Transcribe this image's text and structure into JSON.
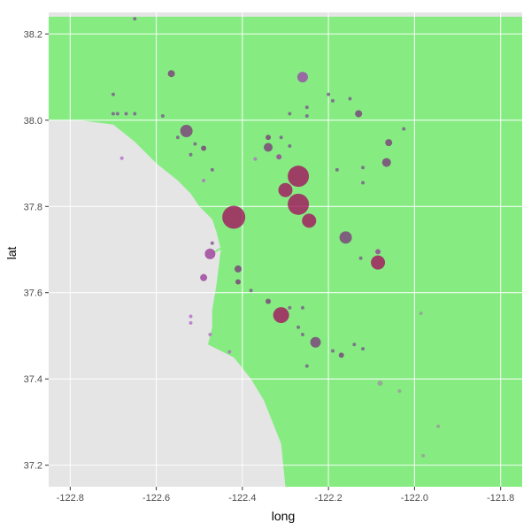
{
  "chart_data": {
    "type": "scatter",
    "title": "",
    "xlabel": "long",
    "ylabel": "lat",
    "xlim": [
      -122.85,
      -121.75
    ],
    "ylim": [
      37.15,
      38.25
    ],
    "x_ticks": [
      -122.8,
      -122.6,
      -122.4,
      -122.2,
      -122.0,
      -121.8
    ],
    "x_tick_labels": [
      "-122.8",
      "-122.6",
      "-122.4",
      "-122.2",
      "-122.0",
      "-121.8"
    ],
    "y_ticks": [
      37.2,
      37.4,
      37.6,
      37.8,
      38.0,
      38.2
    ],
    "y_tick_labels": [
      "37.2",
      "37.4",
      "37.6",
      "37.8",
      "38.0",
      "38.2"
    ],
    "grid": true,
    "legend": "none",
    "background": {
      "panel": "#e5e5e5",
      "grid": "#ffffff",
      "land": "#86ec82"
    },
    "land_polygons": [
      [
        [
          -122.85,
          38.24
        ],
        [
          -121.75,
          38.24
        ],
        [
          -121.75,
          37.15
        ],
        [
          -122.3,
          37.15
        ],
        [
          -122.31,
          37.25
        ],
        [
          -122.33,
          37.3
        ],
        [
          -122.35,
          37.35
        ],
        [
          -122.38,
          37.4
        ],
        [
          -122.42,
          37.45
        ],
        [
          -122.48,
          37.48
        ],
        [
          -122.47,
          37.52
        ],
        [
          -122.47,
          37.56
        ],
        [
          -122.46,
          37.62
        ],
        [
          -122.45,
          37.7
        ],
        [
          -122.46,
          37.74
        ],
        [
          -122.47,
          37.77
        ],
        [
          -122.48,
          37.78
        ],
        [
          -122.5,
          37.8
        ],
        [
          -122.52,
          37.83
        ],
        [
          -122.55,
          37.86
        ],
        [
          -122.6,
          37.9
        ],
        [
          -122.65,
          37.95
        ],
        [
          -122.7,
          37.99
        ],
        [
          -122.78,
          38.0
        ],
        [
          -122.85,
          38.0
        ]
      ],
      [
        [
          -122.55,
          38.15
        ],
        [
          -122.53,
          38.02
        ],
        [
          -122.46,
          37.98
        ],
        [
          -122.42,
          37.97
        ],
        [
          -122.38,
          37.95
        ],
        [
          -122.36,
          37.92
        ],
        [
          -122.34,
          37.9
        ],
        [
          -122.31,
          37.92
        ],
        [
          -122.3,
          37.95
        ],
        [
          -122.28,
          37.98
        ],
        [
          -122.25,
          38.0
        ],
        [
          -122.2,
          38.01
        ],
        [
          -122.14,
          38.01
        ],
        [
          -122.11,
          38.03
        ],
        [
          -122.09,
          38.05
        ],
        [
          -122.1,
          38.08
        ],
        [
          -122.15,
          38.09
        ],
        [
          -122.2,
          38.09
        ],
        [
          -122.25,
          38.1
        ],
        [
          -122.3,
          38.14
        ],
        [
          -122.34,
          38.2
        ],
        [
          -122.42,
          38.2
        ],
        [
          -122.5,
          38.17
        ]
      ],
      [
        [
          -122.47,
          37.69
        ],
        [
          -122.43,
          37.71
        ],
        [
          -122.4,
          37.73
        ],
        [
          -122.37,
          37.74
        ],
        [
          -122.37,
          37.7
        ],
        [
          -122.38,
          37.66
        ],
        [
          -122.37,
          37.62
        ],
        [
          -122.33,
          37.58
        ],
        [
          -122.28,
          37.55
        ],
        [
          -122.23,
          37.5
        ],
        [
          -122.17,
          37.44
        ],
        [
          -122.13,
          37.43
        ],
        [
          -122.1,
          37.43
        ],
        [
          -122.06,
          37.44
        ],
        [
          -122.02,
          37.47
        ],
        [
          -122.03,
          37.51
        ],
        [
          -122.05,
          37.55
        ],
        [
          -122.07,
          37.58
        ],
        [
          -122.1,
          37.62
        ],
        [
          -122.12,
          37.65
        ],
        [
          -122.16,
          37.7
        ],
        [
          -122.19,
          37.74
        ],
        [
          -122.22,
          37.78
        ],
        [
          -122.25,
          37.82
        ],
        [
          -122.27,
          37.86
        ],
        [
          -122.3,
          37.89
        ],
        [
          -122.32,
          37.88
        ],
        [
          -122.33,
          37.85
        ],
        [
          -122.34,
          37.8
        ],
        [
          -122.36,
          37.76
        ],
        [
          -122.42,
          37.72
        ],
        [
          -122.46,
          37.7
        ]
      ]
    ],
    "points": [
      {
        "x": -122.65,
        "y": 38.235,
        "size": 2,
        "color": "#7a5a8c"
      },
      {
        "x": -122.565,
        "y": 38.108,
        "size": 4,
        "color": "#7a3d7a"
      },
      {
        "x": -122.26,
        "y": 38.1,
        "size": 6,
        "color": "#9b4aad"
      },
      {
        "x": -122.7,
        "y": 38.06,
        "size": 2,
        "color": "#7a5a8c"
      },
      {
        "x": -122.69,
        "y": 38.015,
        "size": 2,
        "color": "#7a5a8c"
      },
      {
        "x": -122.7,
        "y": 38.015,
        "size": 2,
        "color": "#7a5a8c"
      },
      {
        "x": -122.67,
        "y": 38.015,
        "size": 2,
        "color": "#7a5a8c"
      },
      {
        "x": -122.65,
        "y": 38.015,
        "size": 2,
        "color": "#7a5a8c"
      },
      {
        "x": -122.585,
        "y": 38.01,
        "size": 2,
        "color": "#7a5a8c"
      },
      {
        "x": -122.53,
        "y": 37.975,
        "size": 7,
        "color": "#7a3d7a"
      },
      {
        "x": -122.55,
        "y": 37.96,
        "size": 2,
        "color": "#7a5a8c"
      },
      {
        "x": -122.51,
        "y": 37.945,
        "size": 2,
        "color": "#7a5a8c"
      },
      {
        "x": -122.52,
        "y": 37.92,
        "size": 2,
        "color": "#7a5a8c"
      },
      {
        "x": -122.49,
        "y": 37.935,
        "size": 3,
        "color": "#7a3d7a"
      },
      {
        "x": -122.68,
        "y": 37.912,
        "size": 2,
        "color": "#b46ec8"
      },
      {
        "x": -122.34,
        "y": 37.96,
        "size": 3,
        "color": "#7a3d7a"
      },
      {
        "x": -122.34,
        "y": 37.937,
        "size": 5,
        "color": "#7a3d7a"
      },
      {
        "x": -122.31,
        "y": 37.96,
        "size": 2,
        "color": "#7a5a8c"
      },
      {
        "x": -122.315,
        "y": 37.915,
        "size": 3,
        "color": "#9b3d9b"
      },
      {
        "x": -122.37,
        "y": 37.91,
        "size": 2,
        "color": "#b46ec8"
      },
      {
        "x": -122.29,
        "y": 37.94,
        "size": 2,
        "color": "#7a5a8c"
      },
      {
        "x": -122.2,
        "y": 38.06,
        "size": 2,
        "color": "#7a5a8c"
      },
      {
        "x": -122.19,
        "y": 38.045,
        "size": 2,
        "color": "#7a5a8c"
      },
      {
        "x": -122.25,
        "y": 38.03,
        "size": 2,
        "color": "#7a5a8c"
      },
      {
        "x": -122.29,
        "y": 38.015,
        "size": 2,
        "color": "#7a5a8c"
      },
      {
        "x": -122.25,
        "y": 38.01,
        "size": 2,
        "color": "#7a5a8c"
      },
      {
        "x": -122.15,
        "y": 38.05,
        "size": 2,
        "color": "#7a5a8c"
      },
      {
        "x": -122.13,
        "y": 38.015,
        "size": 4,
        "color": "#7a3d7a"
      },
      {
        "x": -122.06,
        "y": 37.948,
        "size": 4,
        "color": "#7a3d7a"
      },
      {
        "x": -122.025,
        "y": 37.98,
        "size": 2,
        "color": "#7a5a8c"
      },
      {
        "x": -122.065,
        "y": 37.902,
        "size": 5,
        "color": "#7a3d7a"
      },
      {
        "x": -122.12,
        "y": 37.89,
        "size": 2,
        "color": "#7a5a8c"
      },
      {
        "x": -122.12,
        "y": 37.855,
        "size": 2,
        "color": "#7a5a8c"
      },
      {
        "x": -122.18,
        "y": 37.885,
        "size": 2,
        "color": "#7a5a8c"
      },
      {
        "x": -122.47,
        "y": 37.885,
        "size": 2,
        "color": "#7a5a8c"
      },
      {
        "x": -122.49,
        "y": 37.86,
        "size": 2,
        "color": "#b46ec8"
      },
      {
        "x": -122.27,
        "y": 37.87,
        "size": 12,
        "color": "#a3145e"
      },
      {
        "x": -122.3,
        "y": 37.838,
        "size": 8,
        "color": "#a3145e"
      },
      {
        "x": -122.27,
        "y": 37.805,
        "size": 12,
        "color": "#a3145e"
      },
      {
        "x": -122.245,
        "y": 37.767,
        "size": 8,
        "color": "#a3145e"
      },
      {
        "x": -122.42,
        "y": 37.775,
        "size": 13,
        "color": "#a3145e"
      },
      {
        "x": -122.16,
        "y": 37.728,
        "size": 7,
        "color": "#7a3d7a"
      },
      {
        "x": -122.085,
        "y": 37.695,
        "size": 3,
        "color": "#9b3d9b"
      },
      {
        "x": -122.085,
        "y": 37.67,
        "size": 8,
        "color": "#a3145e"
      },
      {
        "x": -122.125,
        "y": 37.68,
        "size": 2,
        "color": "#7a5a8c"
      },
      {
        "x": -122.47,
        "y": 37.715,
        "size": 2,
        "color": "#7a5a8c"
      },
      {
        "x": -122.475,
        "y": 37.69,
        "size": 6,
        "color": "#9b3d9b"
      },
      {
        "x": -122.41,
        "y": 37.655,
        "size": 4,
        "color": "#7a3d7a"
      },
      {
        "x": -122.41,
        "y": 37.625,
        "size": 3,
        "color": "#7a3d7a"
      },
      {
        "x": -122.49,
        "y": 37.635,
        "size": 4,
        "color": "#9b3d9b"
      },
      {
        "x": -122.38,
        "y": 37.605,
        "size": 2,
        "color": "#7a5a8c"
      },
      {
        "x": -122.34,
        "y": 37.58,
        "size": 3,
        "color": "#7a3d7a"
      },
      {
        "x": -122.31,
        "y": 37.548,
        "size": 9,
        "color": "#a3145e"
      },
      {
        "x": -122.29,
        "y": 37.565,
        "size": 2,
        "color": "#7a5a8c"
      },
      {
        "x": -122.26,
        "y": 37.565,
        "size": 2,
        "color": "#7a5a8c"
      },
      {
        "x": -122.27,
        "y": 37.52,
        "size": 2,
        "color": "#7a5a8c"
      },
      {
        "x": -122.26,
        "y": 37.503,
        "size": 2,
        "color": "#7a5a8c"
      },
      {
        "x": -122.23,
        "y": 37.485,
        "size": 6,
        "color": "#7a3d7a"
      },
      {
        "x": -122.19,
        "y": 37.465,
        "size": 2,
        "color": "#7a5a8c"
      },
      {
        "x": -122.17,
        "y": 37.455,
        "size": 3,
        "color": "#7a3d7a"
      },
      {
        "x": -122.14,
        "y": 37.48,
        "size": 2,
        "color": "#7a5a8c"
      },
      {
        "x": -122.12,
        "y": 37.47,
        "size": 2,
        "color": "#7a5a8c"
      },
      {
        "x": -122.25,
        "y": 37.43,
        "size": 2,
        "color": "#7a5a8c"
      },
      {
        "x": -122.52,
        "y": 37.545,
        "size": 2,
        "color": "#b46ec8"
      },
      {
        "x": -122.52,
        "y": 37.53,
        "size": 2,
        "color": "#b46ec8"
      },
      {
        "x": -122.475,
        "y": 37.503,
        "size": 2,
        "color": "#b46ec8"
      },
      {
        "x": -122.43,
        "y": 37.463,
        "size": 2,
        "color": "#b46ec8"
      },
      {
        "x": -122.08,
        "y": 37.39,
        "size": 3,
        "color": "#9a9a9a"
      },
      {
        "x": -122.035,
        "y": 37.372,
        "size": 2,
        "color": "#9a9a9a"
      },
      {
        "x": -121.985,
        "y": 37.552,
        "size": 2,
        "color": "#9a9a9a"
      },
      {
        "x": -121.945,
        "y": 37.29,
        "size": 2,
        "color": "#9a9a9a"
      },
      {
        "x": -121.98,
        "y": 37.222,
        "size": 2,
        "color": "#9a9a9a"
      }
    ]
  }
}
